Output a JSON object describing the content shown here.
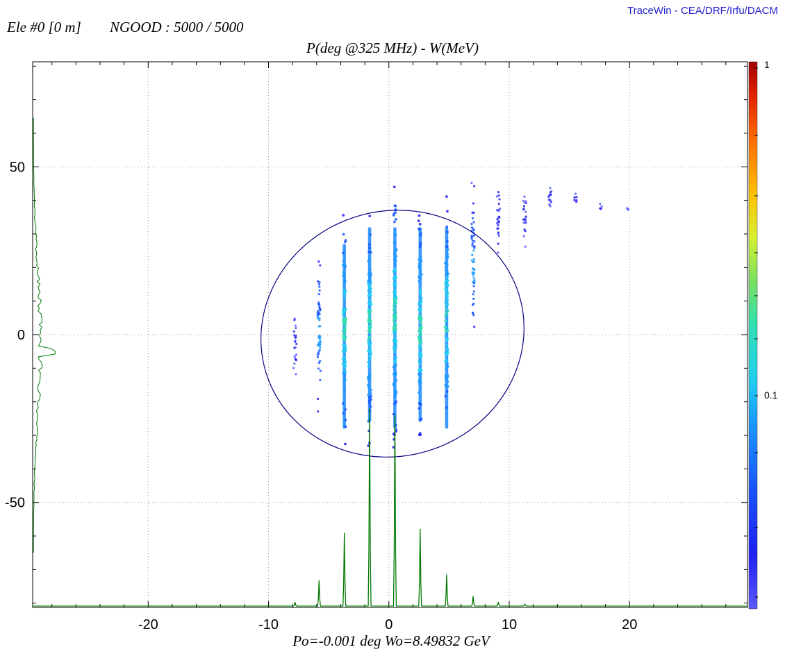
{
  "header": {
    "element_info": "Ele #0 [0 m]",
    "ngood": "NGOOD : 5000 / 5000",
    "branding": "TraceWin - CEA/DRF/Irfu/DACM"
  },
  "chart_data": {
    "type": "scatter",
    "title": "P(deg @325 MHz) - W(MeV)",
    "xlabel": "Po=-0.001 deg  Wo=8.49832 GeV",
    "ylabel": "",
    "xlim": [
      -29.6,
      29.8
    ],
    "ylim": [
      -81.3,
      81.3
    ],
    "x_ticks": [
      -20,
      -10,
      0,
      10,
      20
    ],
    "y_ticks": [
      50,
      0,
      -50
    ],
    "grid": true,
    "colorbar": {
      "ticks": [
        "1",
        "0.1"
      ],
      "scale": "log"
    },
    "scatter_columns": [
      {
        "x": -7.8,
        "ymin": -24,
        "ymax": 16,
        "count": 22
      },
      {
        "x": -5.8,
        "ymin": -30,
        "ymax": 31,
        "count": 55
      },
      {
        "x": -3.7,
        "ymin": -41,
        "ymax": 44,
        "count": 95
      },
      {
        "x": -1.6,
        "ymin": -39,
        "ymax": 45,
        "count": 110
      },
      {
        "x": 0.5,
        "ymin": -43,
        "ymax": 55,
        "count": 130
      },
      {
        "x": 2.6,
        "ymin": -42,
        "ymax": 45,
        "count": 110
      },
      {
        "x": 4.8,
        "ymin": -38,
        "ymax": 47,
        "count": 85
      },
      {
        "x": 7.0,
        "ymin": -9,
        "ymax": 50,
        "count": 55
      },
      {
        "x": 9.1,
        "ymin": 21,
        "ymax": 49,
        "count": 30
      },
      {
        "x": 11.3,
        "ymin": 23,
        "ymax": 46,
        "count": 22
      },
      {
        "x": 13.4,
        "ymin": 36,
        "ymax": 48,
        "count": 14
      },
      {
        "x": 15.5,
        "ymin": 37,
        "ymax": 44,
        "count": 6
      },
      {
        "x": 17.6,
        "ymin": 36,
        "ymax": 40,
        "count": 4
      },
      {
        "x": 19.8,
        "ymin": 36,
        "ymax": 39,
        "count": 3
      }
    ],
    "ellipse": {
      "cx": 0.3,
      "cy": 0.3,
      "a": 36.5,
      "b": 11.0,
      "tilt_deg_from_y": -17.5,
      "color": "#000080"
    },
    "x_profile_peaks": [
      {
        "x": -7.8,
        "h": 0.02
      },
      {
        "x": -5.8,
        "h": 0.13
      },
      {
        "x": -3.7,
        "h": 0.37
      },
      {
        "x": -1.6,
        "h": 1.0
      },
      {
        "x": 0.5,
        "h": 0.97
      },
      {
        "x": 2.6,
        "h": 0.39
      },
      {
        "x": 4.8,
        "h": 0.16
      },
      {
        "x": 7.0,
        "h": 0.05
      },
      {
        "x": 9.1,
        "h": 0.02
      },
      {
        "x": 11.3,
        "h": 0.01
      }
    ],
    "profile_color": "#007700"
  }
}
